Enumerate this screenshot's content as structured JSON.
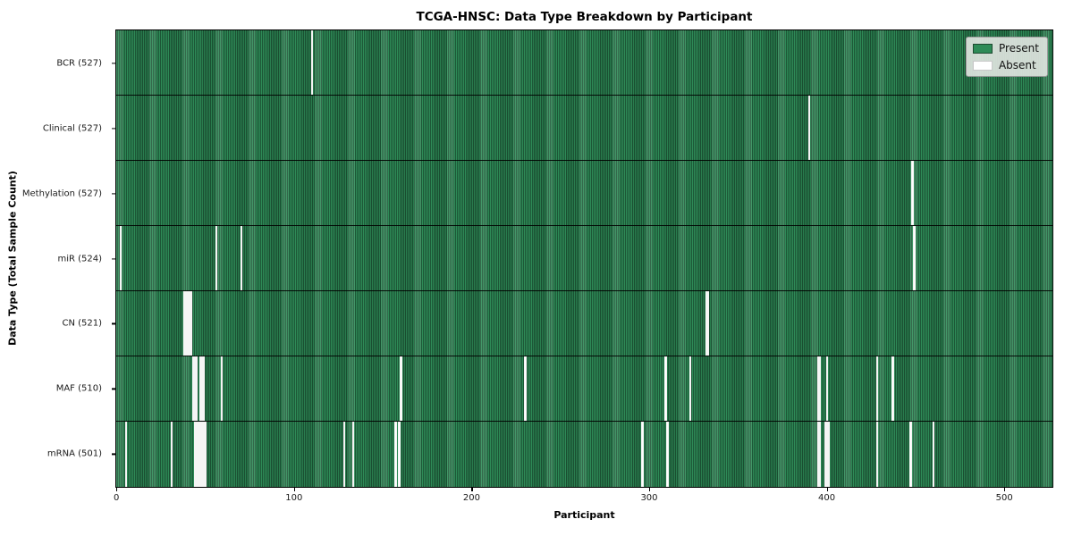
{
  "title": "TCGA-HNSC: Data Type Breakdown by Participant",
  "chart_data": {
    "type": "heatmap",
    "title": "TCGA-HNSC: Data Type Breakdown by Participant",
    "xlabel": "Participant",
    "ylabel": "Data Type (Total Sample Count)",
    "x_ticks": [
      0,
      100,
      200,
      300,
      400,
      500
    ],
    "x_max": 527,
    "grid": false,
    "legend_position": "upper right",
    "legend": [
      {
        "label": "Present",
        "color": "#2e8b57"
      },
      {
        "label": "Absent",
        "color": "#ffffff"
      }
    ],
    "colors": {
      "present": "#2e8b57",
      "present_edge": "#1d5737",
      "absent": "#ffffff",
      "row_separator": "#000000"
    },
    "rows": [
      {
        "label": "BCR (527)",
        "name": "BCR",
        "total_samples": 527,
        "absent_participants": [
          110
        ]
      },
      {
        "label": "Clinical (527)",
        "name": "Clinical",
        "total_samples": 527,
        "absent_participants": [
          390
        ]
      },
      {
        "label": "Methylation (527)",
        "name": "Methylation",
        "total_samples": 527,
        "absent_participants": [
          448
        ]
      },
      {
        "label": "miR (524)",
        "name": "miR",
        "total_samples": 524,
        "absent_participants": [
          2,
          56,
          70,
          449
        ]
      },
      {
        "label": "CN (521)",
        "name": "CN",
        "total_samples": 521,
        "absent_participants": [
          38,
          39,
          40,
          41,
          42,
          332,
          333
        ]
      },
      {
        "label": "MAF (510)",
        "name": "MAF",
        "total_samples": 510,
        "absent_participants": [
          43,
          44,
          45,
          47,
          48,
          49,
          59,
          160,
          230,
          309,
          323,
          395,
          396,
          400,
          428,
          437
        ]
      },
      {
        "label": "mRNA (501)",
        "name": "mRNA",
        "total_samples": 501,
        "absent_participants": [
          5,
          31,
          44,
          45,
          46,
          47,
          48,
          49,
          50,
          128,
          133,
          157,
          159,
          296,
          310,
          395,
          396,
          399,
          400,
          401,
          428,
          447,
          460
        ]
      }
    ]
  }
}
